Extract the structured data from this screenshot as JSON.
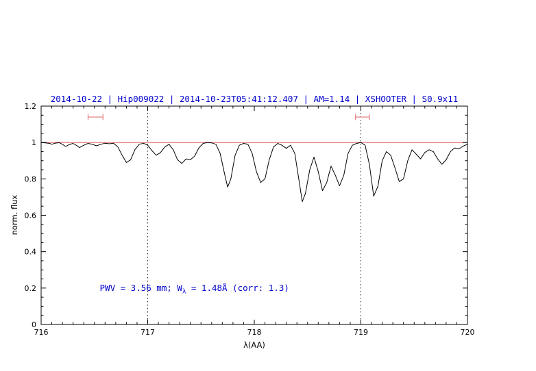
{
  "page": {
    "background": "#ffffff"
  },
  "chart_data": {
    "type": "line",
    "title": "2014-10-22 | Hip009022 | 2014-10-23T05:41:12.407 | AM=1.14 | XSHOOTER | S0.9x11",
    "title_color": "#0000cc",
    "xlabel": "λ(AA)",
    "ylabel": "norm. flux",
    "xlim": [
      716,
      720
    ],
    "ylim": [
      0,
      1.2
    ],
    "x_tick_values": [
      716,
      717,
      718,
      719,
      720
    ],
    "x_tick_labels": [
      "716",
      "717",
      "718",
      "719",
      "720"
    ],
    "x_minor_step": 0.1,
    "y_tick_values": [
      0,
      0.2,
      0.4,
      0.6,
      0.8,
      1.0,
      1.2
    ],
    "y_tick_labels": [
      "0",
      "0.2",
      "0.4",
      "0.6",
      "0.8",
      "1",
      "1.2"
    ],
    "y_minor_step": 0.05,
    "grid": false,
    "frame_color": "#000000",
    "continuum_line": {
      "y": 1.0,
      "color": "#dd4444"
    },
    "vlines": [
      {
        "x": 717,
        "color": "#000000",
        "style": "dotted"
      },
      {
        "x": 719,
        "color": "#000000",
        "style": "dotted"
      }
    ],
    "region_markers": [
      {
        "x1": 716.44,
        "x2": 716.58,
        "y": 1.14,
        "color": "#dd6666"
      },
      {
        "x1": 718.95,
        "x2": 719.08,
        "y": 1.14,
        "color": "#dd6666"
      }
    ],
    "annotation": {
      "pre": "PWV = 3.56 mm; W",
      "sub": "λ",
      "post": " = 1.48Å (corr: 1.3)",
      "color": "#0000cc",
      "x": 716.55,
      "y": 0.2
    },
    "series": [
      {
        "name": "spectrum",
        "color": "#000000",
        "x": [
          716.0,
          716.04,
          716.08,
          716.1,
          716.13,
          716.17,
          716.2,
          716.23,
          716.26,
          716.3,
          716.33,
          716.36,
          716.4,
          716.44,
          716.48,
          716.52,
          716.56,
          716.6,
          716.64,
          716.68,
          716.72,
          716.76,
          716.8,
          716.84,
          716.88,
          716.92,
          716.96,
          717.0,
          717.04,
          717.08,
          717.12,
          717.16,
          717.2,
          717.24,
          717.28,
          717.32,
          717.36,
          717.4,
          717.44,
          717.48,
          717.52,
          717.56,
          717.6,
          717.64,
          717.68,
          717.72,
          717.75,
          717.78,
          717.82,
          717.86,
          717.9,
          717.94,
          717.98,
          718.02,
          718.06,
          718.1,
          718.14,
          718.18,
          718.22,
          718.26,
          718.3,
          718.34,
          718.38,
          718.42,
          718.45,
          718.48,
          718.52,
          718.56,
          718.6,
          718.64,
          718.68,
          718.72,
          718.76,
          718.8,
          718.84,
          718.88,
          718.92,
          718.96,
          719.0,
          719.04,
          719.08,
          719.12,
          719.16,
          719.2,
          719.24,
          719.28,
          719.32,
          719.36,
          719.4,
          719.44,
          719.48,
          719.52,
          719.56,
          719.6,
          719.64,
          719.68,
          719.72,
          719.76,
          719.8,
          719.84,
          719.88,
          719.92,
          719.96,
          720.0
        ],
        "y": [
          1.0,
          0.998,
          0.995,
          0.99,
          0.996,
          0.999,
          0.99,
          0.978,
          0.988,
          0.995,
          0.985,
          0.972,
          0.985,
          0.995,
          0.99,
          0.982,
          0.99,
          0.996,
          0.993,
          0.996,
          0.975,
          0.93,
          0.89,
          0.905,
          0.96,
          0.99,
          0.996,
          0.985,
          0.955,
          0.93,
          0.945,
          0.975,
          0.99,
          0.96,
          0.905,
          0.885,
          0.91,
          0.905,
          0.925,
          0.97,
          0.995,
          1.0,
          0.998,
          0.99,
          0.94,
          0.83,
          0.755,
          0.8,
          0.93,
          0.985,
          0.995,
          0.99,
          0.94,
          0.84,
          0.78,
          0.8,
          0.905,
          0.975,
          0.995,
          0.985,
          0.968,
          0.985,
          0.94,
          0.79,
          0.675,
          0.72,
          0.85,
          0.92,
          0.84,
          0.735,
          0.78,
          0.87,
          0.82,
          0.762,
          0.82,
          0.94,
          0.985,
          0.995,
          1.0,
          0.985,
          0.88,
          0.705,
          0.76,
          0.9,
          0.95,
          0.93,
          0.86,
          0.785,
          0.8,
          0.9,
          0.96,
          0.935,
          0.91,
          0.945,
          0.96,
          0.95,
          0.91,
          0.88,
          0.905,
          0.95,
          0.97,
          0.965,
          0.98,
          0.99
        ]
      }
    ]
  }
}
